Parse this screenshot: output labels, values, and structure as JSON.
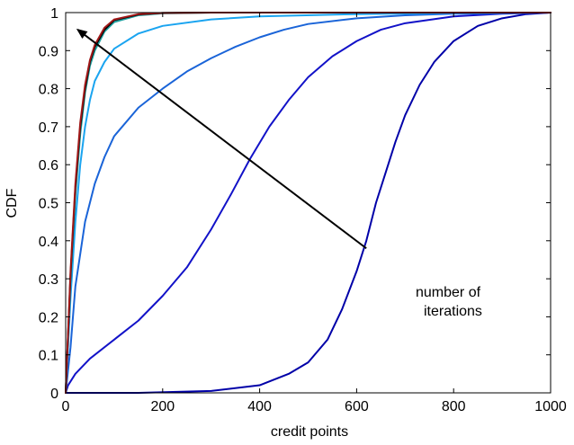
{
  "chart_data": {
    "type": "line",
    "title": "",
    "xlabel": "credit points",
    "ylabel": "CDF",
    "xlim": [
      0,
      1000
    ],
    "ylim": [
      0,
      1
    ],
    "grid": false,
    "x_ticks": [
      0,
      200,
      400,
      600,
      800,
      1000
    ],
    "y_ticks": [
      0,
      0.1,
      0.2,
      0.3,
      0.4,
      0.5,
      0.6,
      0.7,
      0.8,
      0.9,
      1
    ],
    "x_tick_labels": [
      "0",
      "200",
      "400",
      "600",
      "800",
      "1000"
    ],
    "y_tick_labels": [
      "0",
      "0.1",
      "0.2",
      "0.3",
      "0.4",
      "0.5",
      "0.6",
      "0.7",
      "0.8",
      "0.9",
      "1"
    ],
    "annotation": {
      "lines": [
        "number of",
        "iterations"
      ],
      "arrow_from": [
        620,
        0.38
      ],
      "arrow_to": [
        25,
        0.955
      ]
    },
    "series": [
      {
        "color": "#0000a8",
        "points": [
          [
            0,
            0
          ],
          [
            150,
            0
          ],
          [
            300,
            0.005
          ],
          [
            400,
            0.02
          ],
          [
            460,
            0.05
          ],
          [
            500,
            0.08
          ],
          [
            540,
            0.14
          ],
          [
            570,
            0.22
          ],
          [
            600,
            0.32
          ],
          [
            620,
            0.4
          ],
          [
            640,
            0.5
          ],
          [
            660,
            0.58
          ],
          [
            680,
            0.66
          ],
          [
            700,
            0.73
          ],
          [
            730,
            0.81
          ],
          [
            760,
            0.87
          ],
          [
            800,
            0.925
          ],
          [
            850,
            0.965
          ],
          [
            900,
            0.985
          ],
          [
            950,
            0.996
          ],
          [
            1000,
            1
          ]
        ]
      },
      {
        "color": "#1212c8",
        "points": [
          [
            0,
            0
          ],
          [
            5,
            0.02
          ],
          [
            20,
            0.05
          ],
          [
            50,
            0.09
          ],
          [
            100,
            0.14
          ],
          [
            150,
            0.19
          ],
          [
            200,
            0.255
          ],
          [
            250,
            0.33
          ],
          [
            300,
            0.43
          ],
          [
            340,
            0.52
          ],
          [
            380,
            0.615
          ],
          [
            420,
            0.7
          ],
          [
            460,
            0.77
          ],
          [
            500,
            0.83
          ],
          [
            550,
            0.885
          ],
          [
            600,
            0.925
          ],
          [
            650,
            0.955
          ],
          [
            700,
            0.972
          ],
          [
            800,
            0.99
          ],
          [
            900,
            0.997
          ],
          [
            1000,
            1
          ]
        ]
      },
      {
        "color": "#1a64d8",
        "points": [
          [
            0,
            0
          ],
          [
            10,
            0.12
          ],
          [
            20,
            0.28
          ],
          [
            40,
            0.45
          ],
          [
            60,
            0.55
          ],
          [
            80,
            0.62
          ],
          [
            100,
            0.675
          ],
          [
            150,
            0.75
          ],
          [
            200,
            0.8
          ],
          [
            250,
            0.845
          ],
          [
            300,
            0.88
          ],
          [
            350,
            0.91
          ],
          [
            400,
            0.935
          ],
          [
            450,
            0.955
          ],
          [
            500,
            0.97
          ],
          [
            600,
            0.985
          ],
          [
            700,
            0.993
          ],
          [
            800,
            0.997
          ],
          [
            1000,
            1
          ]
        ]
      },
      {
        "color": "#1aa4f0",
        "points": [
          [
            0,
            0
          ],
          [
            10,
            0.25
          ],
          [
            20,
            0.45
          ],
          [
            30,
            0.6
          ],
          [
            40,
            0.7
          ],
          [
            50,
            0.77
          ],
          [
            60,
            0.82
          ],
          [
            80,
            0.87
          ],
          [
            100,
            0.905
          ],
          [
            150,
            0.945
          ],
          [
            200,
            0.965
          ],
          [
            300,
            0.982
          ],
          [
            400,
            0.99
          ],
          [
            600,
            0.996
          ],
          [
            800,
            0.999
          ],
          [
            1000,
            1
          ]
        ]
      },
      {
        "color": "#20a0a0",
        "points": [
          [
            0,
            0
          ],
          [
            10,
            0.3
          ],
          [
            20,
            0.52
          ],
          [
            30,
            0.68
          ],
          [
            40,
            0.79
          ],
          [
            50,
            0.86
          ],
          [
            60,
            0.9
          ],
          [
            80,
            0.95
          ],
          [
            100,
            0.975
          ],
          [
            150,
            0.993
          ],
          [
            200,
            0.998
          ],
          [
            300,
            1
          ],
          [
            1000,
            1
          ]
        ]
      },
      {
        "color": "#000000",
        "points": [
          [
            0,
            0
          ],
          [
            10,
            0.31
          ],
          [
            20,
            0.54
          ],
          [
            30,
            0.7
          ],
          [
            40,
            0.8
          ],
          [
            50,
            0.87
          ],
          [
            60,
            0.91
          ],
          [
            80,
            0.955
          ],
          [
            100,
            0.98
          ],
          [
            150,
            0.995
          ],
          [
            200,
            0.999
          ],
          [
            300,
            1
          ],
          [
            1000,
            1
          ]
        ]
      },
      {
        "color": "#a01818",
        "points": [
          [
            0,
            0
          ],
          [
            10,
            0.32
          ],
          [
            20,
            0.55
          ],
          [
            30,
            0.71
          ],
          [
            40,
            0.81
          ],
          [
            50,
            0.875
          ],
          [
            60,
            0.915
          ],
          [
            80,
            0.96
          ],
          [
            100,
            0.982
          ],
          [
            150,
            0.996
          ],
          [
            200,
            0.999
          ],
          [
            300,
            1
          ],
          [
            1000,
            1
          ]
        ]
      }
    ]
  }
}
